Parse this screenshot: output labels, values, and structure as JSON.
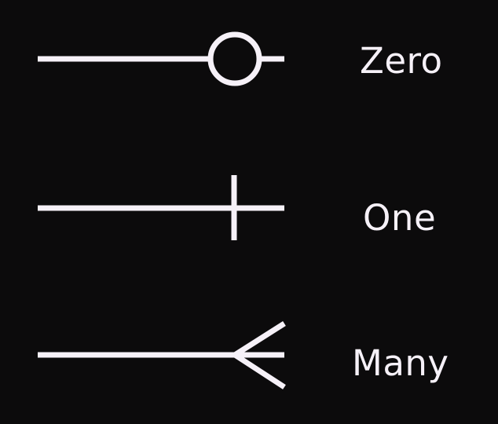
{
  "legend": {
    "items": [
      {
        "label": "Zero",
        "symbol": "ring-icon"
      },
      {
        "label": "One",
        "symbol": "bar-icon"
      },
      {
        "label": "Many",
        "symbol": "crows-foot-icon"
      }
    ]
  },
  "colors": {
    "background": "#0c0b0c",
    "stroke": "#f6f1f8"
  }
}
